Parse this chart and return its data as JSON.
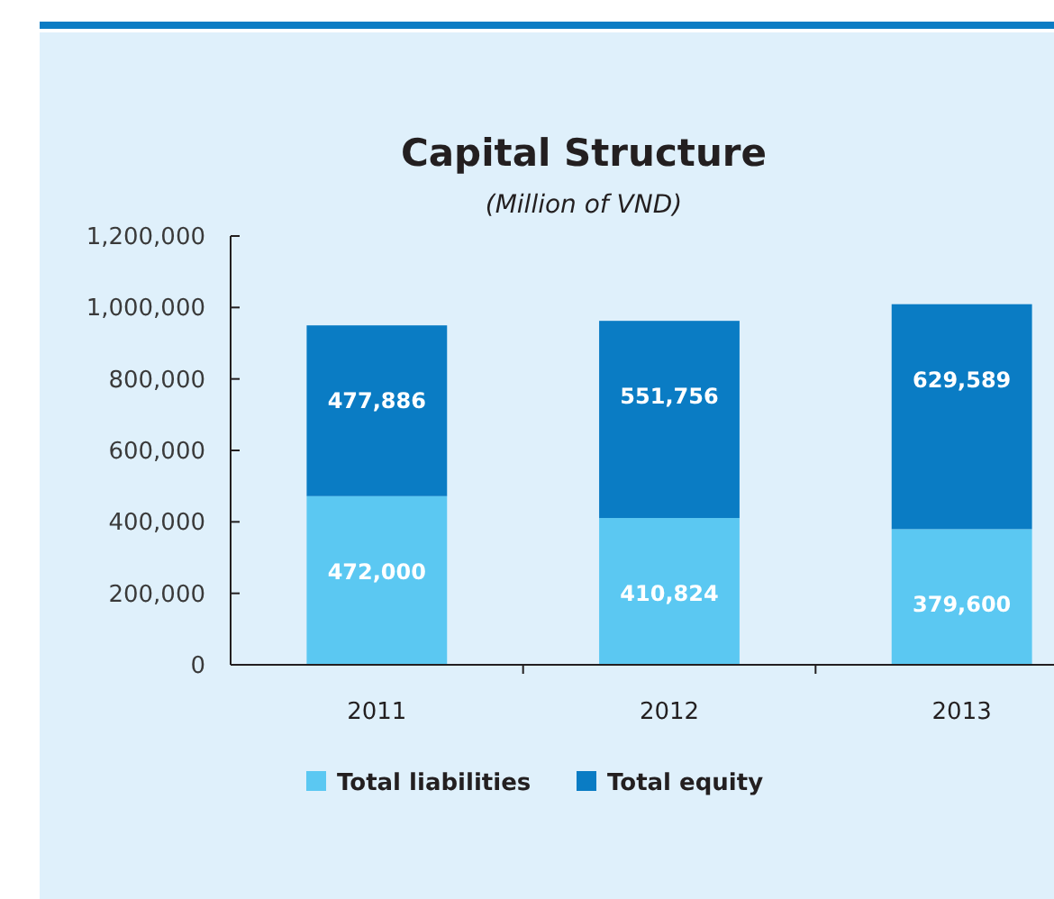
{
  "chart_data": {
    "type": "bar",
    "title": "Capital Structure",
    "subtitle": "(Million of VND)",
    "categories": [
      "2011",
      "2012",
      "2013"
    ],
    "stacked": true,
    "legend": "bottom",
    "grid": false,
    "series": [
      {
        "name": "Total liabilities",
        "color": "#5bc8f2",
        "values": [
          472000,
          410824,
          379600
        ],
        "value_labels": [
          "472,000",
          "410,824",
          "379,600"
        ]
      },
      {
        "name": "Total equity",
        "color": "#0a7cc4",
        "values": [
          477886,
          551756,
          629589
        ],
        "value_labels": [
          "477,886",
          "551,756",
          "629,589"
        ]
      }
    ],
    "ylim": [
      0,
      1200000
    ],
    "yticks": [
      {
        "value": 0,
        "label": "0"
      },
      {
        "value": 200000,
        "label": "200,000"
      },
      {
        "value": 400000,
        "label": "400,000"
      },
      {
        "value": 600000,
        "label": "600,000"
      },
      {
        "value": 800000,
        "label": "800,000"
      },
      {
        "value": 1000000,
        "label": "1,000,000"
      },
      {
        "value": 1200000,
        "label": "1,200,000"
      }
    ]
  }
}
